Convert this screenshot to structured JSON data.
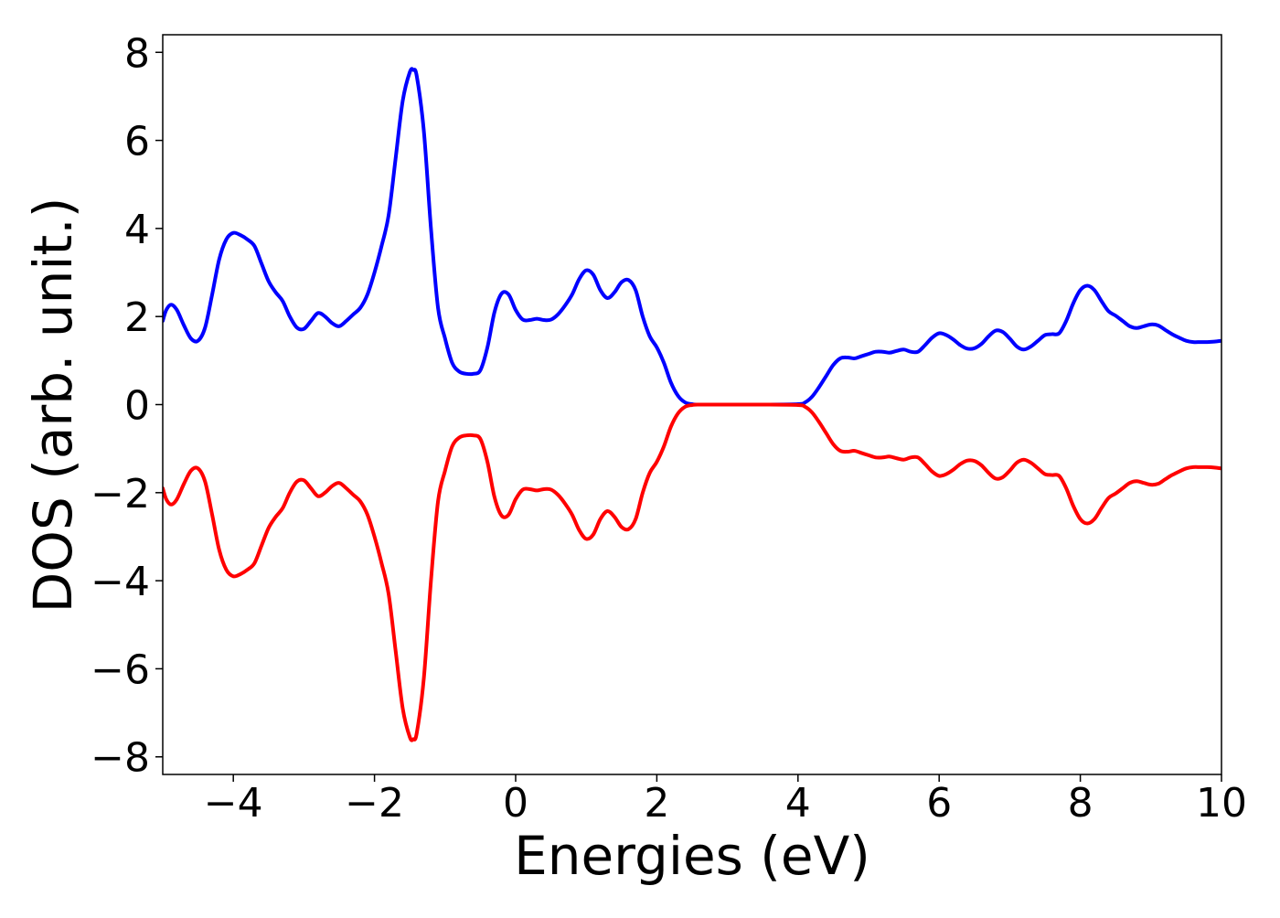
{
  "chart_data": {
    "type": "line",
    "title": "",
    "xlabel": "Energies (eV)",
    "ylabel": "DOS (arb. unit.)",
    "xlim": [
      -5,
      10
    ],
    "ylim": [
      -8.4,
      8.4
    ],
    "xticks": [
      -4,
      -2,
      0,
      2,
      4,
      6,
      8,
      10
    ],
    "yticks": [
      -8,
      -6,
      -4,
      -2,
      0,
      2,
      4,
      6,
      8
    ],
    "grid": false,
    "legend": "none",
    "series": [
      {
        "color": "#0000ff",
        "points": [
          [
            -5.0,
            1.9
          ],
          [
            -4.95,
            2.15
          ],
          [
            -4.88,
            2.27
          ],
          [
            -4.8,
            2.15
          ],
          [
            -4.7,
            1.8
          ],
          [
            -4.6,
            1.5
          ],
          [
            -4.5,
            1.45
          ],
          [
            -4.4,
            1.75
          ],
          [
            -4.3,
            2.5
          ],
          [
            -4.2,
            3.3
          ],
          [
            -4.1,
            3.75
          ],
          [
            -4.0,
            3.9
          ],
          [
            -3.9,
            3.85
          ],
          [
            -3.8,
            3.75
          ],
          [
            -3.7,
            3.6
          ],
          [
            -3.6,
            3.2
          ],
          [
            -3.5,
            2.8
          ],
          [
            -3.4,
            2.55
          ],
          [
            -3.3,
            2.35
          ],
          [
            -3.2,
            2.0
          ],
          [
            -3.1,
            1.75
          ],
          [
            -3.0,
            1.72
          ],
          [
            -2.9,
            1.9
          ],
          [
            -2.8,
            2.08
          ],
          [
            -2.7,
            2.0
          ],
          [
            -2.6,
            1.85
          ],
          [
            -2.5,
            1.78
          ],
          [
            -2.4,
            1.9
          ],
          [
            -2.3,
            2.05
          ],
          [
            -2.2,
            2.2
          ],
          [
            -2.1,
            2.5
          ],
          [
            -2.0,
            3.0
          ],
          [
            -1.9,
            3.6
          ],
          [
            -1.8,
            4.3
          ],
          [
            -1.7,
            5.6
          ],
          [
            -1.6,
            6.9
          ],
          [
            -1.5,
            7.55
          ],
          [
            -1.45,
            7.6
          ],
          [
            -1.4,
            7.45
          ],
          [
            -1.3,
            6.2
          ],
          [
            -1.2,
            4.0
          ],
          [
            -1.1,
            2.2
          ],
          [
            -1.0,
            1.5
          ],
          [
            -0.9,
            0.95
          ],
          [
            -0.8,
            0.75
          ],
          [
            -0.7,
            0.7
          ],
          [
            -0.6,
            0.7
          ],
          [
            -0.5,
            0.78
          ],
          [
            -0.4,
            1.3
          ],
          [
            -0.3,
            2.1
          ],
          [
            -0.2,
            2.52
          ],
          [
            -0.1,
            2.5
          ],
          [
            0.0,
            2.15
          ],
          [
            0.1,
            1.93
          ],
          [
            0.2,
            1.92
          ],
          [
            0.3,
            1.95
          ],
          [
            0.4,
            1.92
          ],
          [
            0.5,
            1.93
          ],
          [
            0.6,
            2.05
          ],
          [
            0.7,
            2.25
          ],
          [
            0.8,
            2.5
          ],
          [
            0.9,
            2.85
          ],
          [
            1.0,
            3.05
          ],
          [
            1.1,
            2.95
          ],
          [
            1.2,
            2.6
          ],
          [
            1.3,
            2.42
          ],
          [
            1.4,
            2.55
          ],
          [
            1.5,
            2.78
          ],
          [
            1.6,
            2.83
          ],
          [
            1.7,
            2.6
          ],
          [
            1.8,
            2.0
          ],
          [
            1.9,
            1.55
          ],
          [
            2.0,
            1.3
          ],
          [
            2.1,
            0.95
          ],
          [
            2.2,
            0.5
          ],
          [
            2.3,
            0.2
          ],
          [
            2.4,
            0.05
          ],
          [
            2.5,
            0.01
          ],
          [
            2.6,
            0.0
          ],
          [
            3.0,
            0.0
          ],
          [
            3.5,
            0.0
          ],
          [
            4.0,
            0.01
          ],
          [
            4.1,
            0.05
          ],
          [
            4.2,
            0.18
          ],
          [
            4.3,
            0.4
          ],
          [
            4.4,
            0.65
          ],
          [
            4.5,
            0.9
          ],
          [
            4.6,
            1.05
          ],
          [
            4.7,
            1.07
          ],
          [
            4.8,
            1.05
          ],
          [
            4.9,
            1.1
          ],
          [
            5.0,
            1.15
          ],
          [
            5.1,
            1.2
          ],
          [
            5.2,
            1.2
          ],
          [
            5.3,
            1.18
          ],
          [
            5.4,
            1.22
          ],
          [
            5.5,
            1.25
          ],
          [
            5.6,
            1.2
          ],
          [
            5.7,
            1.2
          ],
          [
            5.8,
            1.35
          ],
          [
            5.9,
            1.52
          ],
          [
            6.0,
            1.62
          ],
          [
            6.1,
            1.58
          ],
          [
            6.2,
            1.48
          ],
          [
            6.3,
            1.35
          ],
          [
            6.4,
            1.27
          ],
          [
            6.5,
            1.28
          ],
          [
            6.6,
            1.38
          ],
          [
            6.7,
            1.55
          ],
          [
            6.8,
            1.68
          ],
          [
            6.9,
            1.65
          ],
          [
            7.0,
            1.5
          ],
          [
            7.1,
            1.32
          ],
          [
            7.2,
            1.25
          ],
          [
            7.3,
            1.32
          ],
          [
            7.4,
            1.45
          ],
          [
            7.5,
            1.58
          ],
          [
            7.6,
            1.6
          ],
          [
            7.7,
            1.62
          ],
          [
            7.8,
            1.9
          ],
          [
            7.9,
            2.3
          ],
          [
            8.0,
            2.6
          ],
          [
            8.1,
            2.7
          ],
          [
            8.2,
            2.6
          ],
          [
            8.3,
            2.35
          ],
          [
            8.4,
            2.12
          ],
          [
            8.5,
            2.02
          ],
          [
            8.6,
            1.9
          ],
          [
            8.7,
            1.78
          ],
          [
            8.8,
            1.74
          ],
          [
            8.9,
            1.78
          ],
          [
            9.0,
            1.82
          ],
          [
            9.1,
            1.8
          ],
          [
            9.2,
            1.7
          ],
          [
            9.3,
            1.6
          ],
          [
            9.4,
            1.52
          ],
          [
            9.5,
            1.45
          ],
          [
            9.6,
            1.42
          ],
          [
            9.7,
            1.42
          ],
          [
            9.8,
            1.42
          ],
          [
            9.9,
            1.43
          ],
          [
            10.0,
            1.45
          ]
        ]
      },
      {
        "color": "#ff0000",
        "points": [
          [
            -5.0,
            -1.9
          ],
          [
            -4.95,
            -2.15
          ],
          [
            -4.88,
            -2.27
          ],
          [
            -4.8,
            -2.15
          ],
          [
            -4.7,
            -1.8
          ],
          [
            -4.6,
            -1.5
          ],
          [
            -4.5,
            -1.45
          ],
          [
            -4.4,
            -1.75
          ],
          [
            -4.3,
            -2.5
          ],
          [
            -4.2,
            -3.3
          ],
          [
            -4.1,
            -3.75
          ],
          [
            -4.0,
            -3.9
          ],
          [
            -3.9,
            -3.85
          ],
          [
            -3.8,
            -3.75
          ],
          [
            -3.7,
            -3.6
          ],
          [
            -3.6,
            -3.2
          ],
          [
            -3.5,
            -2.8
          ],
          [
            -3.4,
            -2.55
          ],
          [
            -3.3,
            -2.35
          ],
          [
            -3.2,
            -2.0
          ],
          [
            -3.1,
            -1.75
          ],
          [
            -3.0,
            -1.72
          ],
          [
            -2.9,
            -1.9
          ],
          [
            -2.8,
            -2.08
          ],
          [
            -2.7,
            -2.0
          ],
          [
            -2.6,
            -1.85
          ],
          [
            -2.5,
            -1.78
          ],
          [
            -2.4,
            -1.9
          ],
          [
            -2.3,
            -2.05
          ],
          [
            -2.2,
            -2.2
          ],
          [
            -2.1,
            -2.5
          ],
          [
            -2.0,
            -3.0
          ],
          [
            -1.9,
            -3.6
          ],
          [
            -1.8,
            -4.3
          ],
          [
            -1.7,
            -5.6
          ],
          [
            -1.6,
            -6.9
          ],
          [
            -1.5,
            -7.55
          ],
          [
            -1.45,
            -7.6
          ],
          [
            -1.4,
            -7.45
          ],
          [
            -1.3,
            -6.2
          ],
          [
            -1.2,
            -4.0
          ],
          [
            -1.1,
            -2.2
          ],
          [
            -1.0,
            -1.5
          ],
          [
            -0.9,
            -0.95
          ],
          [
            -0.8,
            -0.75
          ],
          [
            -0.7,
            -0.7
          ],
          [
            -0.6,
            -0.7
          ],
          [
            -0.5,
            -0.78
          ],
          [
            -0.4,
            -1.3
          ],
          [
            -0.3,
            -2.1
          ],
          [
            -0.2,
            -2.52
          ],
          [
            -0.1,
            -2.5
          ],
          [
            0.0,
            -2.15
          ],
          [
            0.1,
            -1.93
          ],
          [
            0.2,
            -1.92
          ],
          [
            0.3,
            -1.95
          ],
          [
            0.4,
            -1.92
          ],
          [
            0.5,
            -1.93
          ],
          [
            0.6,
            -2.05
          ],
          [
            0.7,
            -2.25
          ],
          [
            0.8,
            -2.5
          ],
          [
            0.9,
            -2.85
          ],
          [
            1.0,
            -3.05
          ],
          [
            1.1,
            -2.95
          ],
          [
            1.2,
            -2.6
          ],
          [
            1.3,
            -2.42
          ],
          [
            1.4,
            -2.55
          ],
          [
            1.5,
            -2.78
          ],
          [
            1.6,
            -2.83
          ],
          [
            1.7,
            -2.6
          ],
          [
            1.8,
            -2.0
          ],
          [
            1.9,
            -1.55
          ],
          [
            2.0,
            -1.3
          ],
          [
            2.1,
            -0.95
          ],
          [
            2.2,
            -0.5
          ],
          [
            2.3,
            -0.2
          ],
          [
            2.4,
            -0.05
          ],
          [
            2.5,
            -0.01
          ],
          [
            2.6,
            0.0
          ],
          [
            3.0,
            0.0
          ],
          [
            3.5,
            0.0
          ],
          [
            4.0,
            -0.01
          ],
          [
            4.1,
            -0.05
          ],
          [
            4.2,
            -0.18
          ],
          [
            4.3,
            -0.4
          ],
          [
            4.4,
            -0.65
          ],
          [
            4.5,
            -0.9
          ],
          [
            4.6,
            -1.05
          ],
          [
            4.7,
            -1.07
          ],
          [
            4.8,
            -1.05
          ],
          [
            4.9,
            -1.1
          ],
          [
            5.0,
            -1.15
          ],
          [
            5.1,
            -1.2
          ],
          [
            5.2,
            -1.2
          ],
          [
            5.3,
            -1.18
          ],
          [
            5.4,
            -1.22
          ],
          [
            5.5,
            -1.25
          ],
          [
            5.6,
            -1.2
          ],
          [
            5.7,
            -1.2
          ],
          [
            5.8,
            -1.35
          ],
          [
            5.9,
            -1.52
          ],
          [
            6.0,
            -1.62
          ],
          [
            6.1,
            -1.58
          ],
          [
            6.2,
            -1.48
          ],
          [
            6.3,
            -1.35
          ],
          [
            6.4,
            -1.27
          ],
          [
            6.5,
            -1.28
          ],
          [
            6.6,
            -1.38
          ],
          [
            6.7,
            -1.55
          ],
          [
            6.8,
            -1.68
          ],
          [
            6.9,
            -1.65
          ],
          [
            7.0,
            -1.5
          ],
          [
            7.1,
            -1.32
          ],
          [
            7.2,
            -1.25
          ],
          [
            7.3,
            -1.32
          ],
          [
            7.4,
            -1.45
          ],
          [
            7.5,
            -1.58
          ],
          [
            7.6,
            -1.6
          ],
          [
            7.7,
            -1.62
          ],
          [
            7.8,
            -1.9
          ],
          [
            7.9,
            -2.3
          ],
          [
            8.0,
            -2.6
          ],
          [
            8.1,
            -2.7
          ],
          [
            8.2,
            -2.6
          ],
          [
            8.3,
            -2.35
          ],
          [
            8.4,
            -2.12
          ],
          [
            8.5,
            -2.02
          ],
          [
            8.6,
            -1.9
          ],
          [
            8.7,
            -1.78
          ],
          [
            8.8,
            -1.74
          ],
          [
            8.9,
            -1.78
          ],
          [
            9.0,
            -1.82
          ],
          [
            9.1,
            -1.8
          ],
          [
            9.2,
            -1.7
          ],
          [
            9.3,
            -1.6
          ],
          [
            9.4,
            -1.52
          ],
          [
            9.5,
            -1.45
          ],
          [
            9.6,
            -1.42
          ],
          [
            9.7,
            -1.42
          ],
          [
            9.8,
            -1.42
          ],
          [
            9.9,
            -1.43
          ],
          [
            10.0,
            -1.45
          ]
        ]
      }
    ]
  }
}
